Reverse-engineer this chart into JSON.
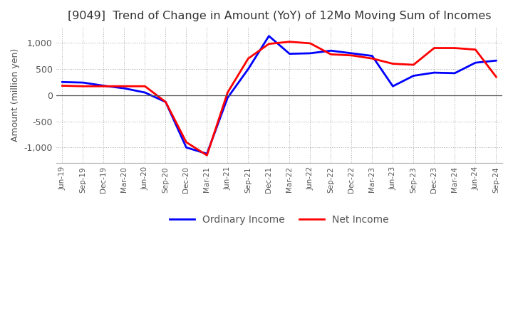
{
  "title": "[9049]  Trend of Change in Amount (YoY) of 12Mo Moving Sum of Incomes",
  "ylabel": "Amount (million yen)",
  "legend": [
    "Ordinary Income",
    "Net Income"
  ],
  "colors": [
    "#0000ff",
    "#ff0000"
  ],
  "x_labels": [
    "Jun-19",
    "Sep-19",
    "Dec-19",
    "Mar-20",
    "Jun-20",
    "Sep-20",
    "Dec-20",
    "Mar-21",
    "Jun-21",
    "Sep-21",
    "Dec-21",
    "Mar-22",
    "Jun-22",
    "Sep-22",
    "Dec-22",
    "Mar-23",
    "Jun-23",
    "Sep-23",
    "Dec-23",
    "Mar-24",
    "Jun-24",
    "Sep-24"
  ],
  "ordinary_income": [
    250,
    240,
    180,
    130,
    50,
    -130,
    -1000,
    -1120,
    -50,
    500,
    1130,
    790,
    800,
    850,
    800,
    750,
    170,
    370,
    430,
    420,
    620,
    660
  ],
  "net_income": [
    180,
    170,
    170,
    170,
    170,
    -130,
    -900,
    -1150,
    50,
    700,
    980,
    1020,
    990,
    780,
    760,
    700,
    600,
    580,
    900,
    900,
    870,
    350
  ],
  "ylim": [
    -1300,
    1300
  ],
  "yticks": [
    -1000,
    -500,
    0,
    500,
    1000
  ],
  "background_color": "#ffffff",
  "grid_color": "#aaaaaa",
  "title_color": "#333333",
  "axis_color": "#555555"
}
